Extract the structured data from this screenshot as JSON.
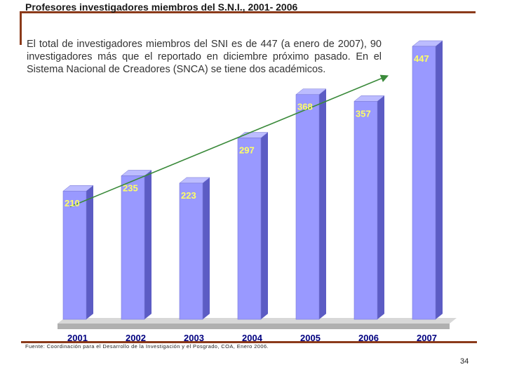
{
  "slide": {
    "title": "Profesores investigadores miembros del S.N.I., 2001- 2006",
    "description": "El total de investigadores miembros del SNI es de 447 (a enero de 2007), 90 investigadores más que el reportado en diciembre próximo pasado. En el Sistema Nacional de Creadores (SNCA) se tiene dos académicos.",
    "source": "Fuente: Coordinación para el Desarrollo de la Investigación y el Posgrado, COA,  Enero 2006.",
    "page_number": "34"
  },
  "chart_data": {
    "type": "bar",
    "style": "3d-columns",
    "categories": [
      "2001",
      "2002",
      "2003",
      "2004",
      "2005",
      "2006",
      "2007"
    ],
    "values": [
      210,
      235,
      223,
      297,
      368,
      357,
      447
    ],
    "data_labels": [
      "210",
      "235",
      "223",
      "297",
      "368",
      "357",
      "447"
    ],
    "title": "",
    "xlabel": "",
    "ylabel": "",
    "ylim": [
      0,
      447
    ],
    "grid": false,
    "legend": "none",
    "colors": {
      "bar_front": "#9999ff",
      "bar_side": "#5c5cc4",
      "bar_top": "#bcbcff",
      "floor": "#b0b0b0",
      "floor_shadow": "#d8d8d8",
      "data_label": "#ffff66",
      "category_label": "#000080",
      "trend_line": "#3a8a3a"
    },
    "trend_line": {
      "type": "linear",
      "arrow": true
    }
  }
}
